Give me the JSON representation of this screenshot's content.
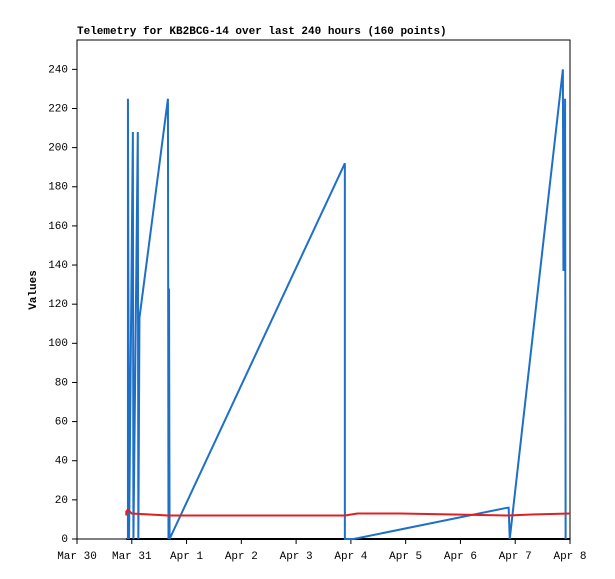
{
  "chart_data": {
    "type": "line",
    "title": "Telemetry for KB2BCG-14 over last 240 hours (160 points)",
    "ylabel": "Values",
    "xlim": [
      0,
      9
    ],
    "ylim": [
      0,
      255
    ],
    "xticks": [
      {
        "value": 0,
        "label": "Mar 30"
      },
      {
        "value": 1,
        "label": "Mar 31"
      },
      {
        "value": 2,
        "label": "Apr 1"
      },
      {
        "value": 3,
        "label": "Apr 2"
      },
      {
        "value": 4,
        "label": "Apr 3"
      },
      {
        "value": 5,
        "label": "Apr 4"
      },
      {
        "value": 6,
        "label": "Apr 5"
      },
      {
        "value": 7,
        "label": "Apr 6"
      },
      {
        "value": 8,
        "label": "Apr 7"
      },
      {
        "value": 9,
        "label": "Apr 8"
      }
    ],
    "yticks": [
      0,
      20,
      40,
      60,
      80,
      100,
      120,
      140,
      160,
      180,
      200,
      220,
      240
    ],
    "series": [
      {
        "color": "#000000",
        "x": [
          0.9,
          9
        ],
        "values": [
          0,
          0
        ]
      },
      {
        "color": "#1e6fc8",
        "x": [
          0.93,
          0.93,
          0.95,
          1.02,
          1.03,
          1.11,
          1.12,
          1.14,
          1.66,
          1.67,
          1.68,
          1.69,
          4.89,
          4.89,
          5.05,
          7.86,
          7.88,
          7.9,
          8.87,
          8.88,
          8.9,
          8.91,
          8.92
        ],
        "values": [
          0,
          225,
          0,
          208,
          0,
          208,
          0,
          113,
          225,
          0,
          128,
          0,
          192,
          0,
          0,
          16,
          16,
          0,
          240,
          137,
          145,
          225,
          0
        ]
      },
      {
        "color": "#e02020",
        "x": [
          0.9,
          0.9,
          0.93,
          1.0,
          1.66,
          4.89,
          5.12,
          5.9,
          7.86,
          8.3,
          9
        ],
        "values": [
          12,
          14,
          15,
          13,
          12,
          12,
          13,
          13,
          12,
          12.5,
          13
        ]
      }
    ]
  }
}
